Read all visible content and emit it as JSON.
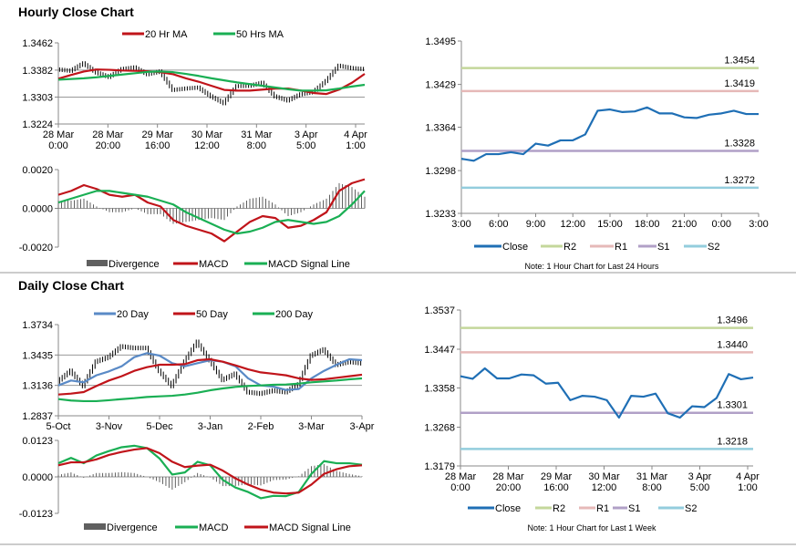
{
  "sections": {
    "hourly_title": "Hourly Close Chart",
    "daily_title": "Daily Close Chart",
    "note_24h": "Note: 1 Hour Chart for Last 24 Hours",
    "note_week": "Note: 1 Hour Chart for  Last 1 Week"
  },
  "colors": {
    "red": "#c0141a",
    "green": "#1aaf54",
    "blue20": "#5a8ac6",
    "close": "#1f6fb5",
    "R2": "#c4d79b",
    "R1": "#e6b9b8",
    "S1": "#b1a0c7",
    "S2": "#93cddd",
    "divergence": "#606060"
  },
  "chart_data": [
    {
      "type": "line",
      "ylim": [
        1.3224,
        1.3462
      ],
      "yticks": [
        "1.3224",
        "1.3303",
        "1.3382",
        "1.3462"
      ],
      "grid": true,
      "xticks": [
        [
          "28 Mar",
          "0:00"
        ],
        [
          "28 Mar",
          "20:00"
        ],
        [
          "29 Mar",
          "16:00"
        ],
        [
          "30 Mar",
          "12:00"
        ],
        [
          "31 Mar",
          "8:00"
        ],
        [
          "3 Apr",
          "5:00"
        ],
        [
          "4 Apr",
          "1:00"
        ]
      ],
      "price_bars": [
        1.3384,
        1.338,
        1.3402,
        1.3375,
        1.3362,
        1.3385,
        1.339,
        1.337,
        1.3378,
        1.3324,
        1.3328,
        1.3331,
        1.3305,
        1.3285,
        1.3335,
        1.3336,
        1.3345,
        1.3305,
        1.3293,
        1.3311,
        1.3318,
        1.335,
        1.3395,
        1.3388,
        1.3385
      ],
      "series": [
        {
          "name": "20 Hr MA",
          "color": "#c0141a",
          "values": [
            1.3357,
            1.3368,
            1.3378,
            1.3384,
            1.3383,
            1.3381,
            1.338,
            1.3379,
            1.3376,
            1.337,
            1.3358,
            1.3348,
            1.3336,
            1.3324,
            1.3322,
            1.3322,
            1.3325,
            1.3328,
            1.3328,
            1.3322,
            1.3315,
            1.3312,
            1.3325,
            1.3345,
            1.3371
          ]
        },
        {
          "name": "50 Hrs MA",
          "color": "#1aaf54",
          "values": [
            1.3354,
            1.3356,
            1.3358,
            1.3361,
            1.3365,
            1.3369,
            1.3373,
            1.3377,
            1.3378,
            1.3376,
            1.3371,
            1.3365,
            1.3358,
            1.3352,
            1.3346,
            1.3341,
            1.3336,
            1.3331,
            1.3326,
            1.3322,
            1.3322,
            1.3323,
            1.3328,
            1.3334,
            1.3339
          ]
        }
      ],
      "legend": [
        "20 Hr MA",
        "50 Hrs MA"
      ]
    },
    {
      "type": "line",
      "ylim": [
        -0.002,
        0.002
      ],
      "yticks": [
        "-0.0020",
        "0.0000",
        "0.0020"
      ],
      "divergence": {
        "name": "Divergence",
        "color": "#606060",
        "values": [
          0.0004,
          0.0004,
          0.0005,
          0.0001,
          -0.0002,
          -0.0002,
          0,
          -0.0003,
          -0.0003,
          -0.0008,
          -0.0007,
          -0.0006,
          -0.0005,
          -0.0006,
          0.0001,
          0.0005,
          0.0006,
          0.0002,
          -0.0004,
          -0.0002,
          0.0002,
          0.0005,
          0.0013,
          0.0011,
          0.0006
        ]
      },
      "series": [
        {
          "name": "MACD",
          "color": "#c0141a",
          "values": [
            0.0007,
            0.0009,
            0.0012,
            0.001,
            0.0007,
            0.0006,
            0.0007,
            0.0003,
            0.0001,
            -0.0006,
            -0.0009,
            -0.0011,
            -0.0013,
            -0.0017,
            -0.0012,
            -0.0007,
            -0.0004,
            -0.0005,
            -0.001,
            -0.0009,
            -0.0006,
            -0.0002,
            0.0009,
            0.0013,
            0.0015
          ]
        },
        {
          "name": "MACD Signal Line",
          "color": "#1aaf54",
          "values": [
            0.0003,
            0.0005,
            0.0007,
            0.0009,
            0.0009,
            0.0008,
            0.0007,
            0.0006,
            0.0004,
            0.0002,
            -0.0002,
            -0.0005,
            -0.0008,
            -0.0011,
            -0.0013,
            -0.0012,
            -0.001,
            -0.0007,
            -0.0006,
            -0.0007,
            -0.0008,
            -0.0007,
            -0.0004,
            0.0002,
            0.0009
          ]
        }
      ],
      "legend": [
        "Divergence",
        "MACD",
        "MACD Signal Line"
      ]
    },
    {
      "type": "line",
      "ylim": [
        1.3233,
        1.3495
      ],
      "yticks": [
        "1.3233",
        "1.3298",
        "1.3364",
        "1.3429",
        "1.3495"
      ],
      "xticks": [
        [
          "3:00"
        ],
        [
          "6:00"
        ],
        [
          "9:00"
        ],
        [
          "12:00"
        ],
        [
          "15:00"
        ],
        [
          "18:00"
        ],
        [
          "21:00"
        ],
        [
          "0:00"
        ],
        [
          "3:00"
        ]
      ],
      "series": [
        {
          "name": "Close",
          "color": "#1f6fb5",
          "values": [
            1.3316,
            1.3313,
            1.3323,
            1.3323,
            1.3326,
            1.3323,
            1.3339,
            1.3336,
            1.3344,
            1.3344,
            1.3353,
            1.3389,
            1.3391,
            1.3387,
            1.3388,
            1.3394,
            1.3385,
            1.3385,
            1.3379,
            1.3378,
            1.3383,
            1.3385,
            1.3389,
            1.3384,
            1.3384
          ]
        }
      ],
      "levels": [
        {
          "name": "R2",
          "value": "1.3454",
          "color": "#c4d79b"
        },
        {
          "name": "R1",
          "value": "1.3419",
          "color": "#e6b9b8"
        },
        {
          "name": "S1",
          "value": "1.3328",
          "color": "#b1a0c7"
        },
        {
          "name": "S2",
          "value": "1.3272",
          "color": "#93cddd"
        }
      ],
      "legend": [
        "Close",
        "R2",
        "R1",
        "S1",
        "S2"
      ]
    },
    {
      "type": "line",
      "ylim": [
        1.2837,
        1.3734
      ],
      "yticks": [
        "1.2837",
        "1.3136",
        "1.3435",
        "1.3734"
      ],
      "grid": true,
      "xticks": [
        [
          "5-Oct"
        ],
        [
          "3-Nov"
        ],
        [
          "5-Dec"
        ],
        [
          "3-Jan"
        ],
        [
          "2-Feb"
        ],
        [
          "3-Mar"
        ],
        [
          "3-Apr"
        ]
      ],
      "price_bars": [
        1.3175,
        1.3279,
        1.313,
        1.3369,
        1.3414,
        1.3519,
        1.3504,
        1.3504,
        1.3279,
        1.313,
        1.3369,
        1.3564,
        1.3384,
        1.319,
        1.325,
        1.307,
        1.3055,
        1.3085,
        1.307,
        1.3145,
        1.3429,
        1.3489,
        1.3339,
        1.3369,
        1.3354
      ],
      "series": [
        {
          "name": "20 Day",
          "color": "#5a8ac6",
          "values": [
            1.3136,
            1.3184,
            1.3166,
            1.3235,
            1.3274,
            1.3324,
            1.3414,
            1.3453,
            1.3429,
            1.3354,
            1.3324,
            1.3354,
            1.3384,
            1.3369,
            1.3324,
            1.3205,
            1.3136,
            1.3124,
            1.3091,
            1.31,
            1.3205,
            1.3279,
            1.3339,
            1.3393,
            1.3384
          ]
        },
        {
          "name": "50 Day",
          "color": "#c0141a",
          "values": [
            1.3046,
            1.3055,
            1.307,
            1.313,
            1.3184,
            1.3226,
            1.3279,
            1.3315,
            1.3339,
            1.3339,
            1.3345,
            1.3384,
            1.3393,
            1.3369,
            1.3333,
            1.3294,
            1.3264,
            1.325,
            1.3235,
            1.3205,
            1.319,
            1.3196,
            1.3211,
            1.3226,
            1.3241
          ]
        },
        {
          "name": "200 Day",
          "color": "#1aaf54",
          "values": [
            1.3001,
            1.2987,
            1.2981,
            1.2981,
            1.299,
            1.3001,
            1.301,
            1.3022,
            1.3028,
            1.3034,
            1.3046,
            1.3064,
            1.3088,
            1.3106,
            1.3121,
            1.313,
            1.3136,
            1.3142,
            1.3145,
            1.3154,
            1.3166,
            1.3175,
            1.3184,
            1.3196,
            1.3205
          ]
        }
      ],
      "legend": [
        "20 Day",
        "50 Day",
        "200 Day"
      ]
    },
    {
      "type": "line",
      "ylim": [
        -0.0123,
        0.0123
      ],
      "yticks": [
        "-0.0123",
        "0.0000",
        "0.0123"
      ],
      "divergence": {
        "name": "Divergence",
        "color": "#606060",
        "values": [
          0.0007,
          0.0015,
          -0.0003,
          0.0013,
          0.0013,
          0.0016,
          0.0013,
          0,
          -0.0018,
          -0.0043,
          -0.0018,
          0.0013,
          -0.0002,
          -0.0031,
          -0.0031,
          -0.0025,
          -0.0029,
          -0.0011,
          -0.0009,
          0.0002,
          0.0036,
          0.0043,
          0.002,
          0.001,
          0.0002
        ]
      },
      "series": [
        {
          "name": "MACD",
          "color": "#1aaf54",
          "values": [
            0.0046,
            0.0064,
            0.0046,
            0.0072,
            0.0087,
            0.01,
            0.0105,
            0.0097,
            0.0062,
            0.0008,
            0.0015,
            0.0051,
            0.0039,
            -0.001,
            -0.0036,
            -0.0051,
            -0.0072,
            -0.0064,
            -0.0065,
            -0.0051,
            0.001,
            0.0053,
            0.0046,
            0.0046,
            0.0041
          ]
        },
        {
          "name": "MACD Signal Line",
          "color": "#c0141a",
          "values": [
            0.0039,
            0.0049,
            0.0049,
            0.0059,
            0.0074,
            0.0084,
            0.0092,
            0.0097,
            0.008,
            0.0051,
            0.0033,
            0.0038,
            0.0041,
            0.0021,
            -0.0005,
            -0.0026,
            -0.0043,
            -0.0053,
            -0.0056,
            -0.0053,
            -0.0026,
            0.001,
            0.0026,
            0.0036,
            0.0039
          ]
        }
      ],
      "legend": [
        "Divergence",
        "MACD",
        "MACD Signal Line"
      ]
    },
    {
      "type": "line",
      "ylim": [
        1.3179,
        1.3537
      ],
      "yticks": [
        "1.3179",
        "1.3268",
        "1.3358",
        "1.3447",
        "1.3537"
      ],
      "xticks": [
        [
          "28 Mar",
          "0:00"
        ],
        [
          "28 Mar",
          "20:00"
        ],
        [
          "29 Mar",
          "16:00"
        ],
        [
          "30 Mar",
          "12:00"
        ],
        [
          "31 Mar",
          "8:00"
        ],
        [
          "3 Apr",
          "5:00"
        ],
        [
          "4 Apr",
          "1:00"
        ]
      ],
      "series": [
        {
          "name": "Close",
          "color": "#1f6fb5",
          "values": [
            1.3385,
            1.3379,
            1.3403,
            1.338,
            1.338,
            1.3389,
            1.3387,
            1.3368,
            1.337,
            1.333,
            1.334,
            1.3338,
            1.333,
            1.329,
            1.334,
            1.3338,
            1.3345,
            1.33,
            1.329,
            1.3316,
            1.3314,
            1.3335,
            1.339,
            1.3378,
            1.3382
          ]
        }
      ],
      "levels": [
        {
          "name": "R2",
          "value": "1.3496",
          "color": "#c4d79b"
        },
        {
          "name": "R1",
          "value": "1.3440",
          "color": "#e6b9b8"
        },
        {
          "name": "S1",
          "value": "1.3301",
          "color": "#b1a0c7"
        },
        {
          "name": "S2",
          "value": "1.3218",
          "color": "#93cddd"
        }
      ],
      "legend": [
        "Close",
        "R2",
        "R1",
        "S1",
        "S2"
      ]
    }
  ]
}
